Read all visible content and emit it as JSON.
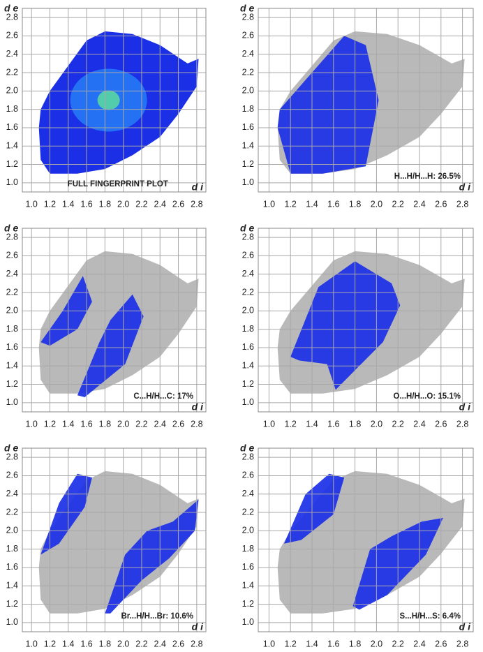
{
  "chart_data": [
    {
      "type": "fingerprint",
      "annotation": "FULL FINGERPRINT PLOT",
      "xlabel": "d i",
      "ylabel": "d e",
      "xlim": [
        0.9,
        2.9
      ],
      "ylim": [
        0.9,
        2.9
      ],
      "xticks": [
        {
          "value": 1,
          "label": "1.0"
        },
        1.2,
        1.4,
        1.6,
        1.8,
        {
          "value": 2,
          "label": "2.0"
        },
        2.2,
        2.4,
        2.6,
        2.8
      ],
      "yticks": [
        {
          "value": 1,
          "label": "1.0"
        },
        1.2,
        1.4,
        1.6,
        1.8,
        {
          "value": 2,
          "label": "2.0"
        },
        2.2,
        2.4,
        2.6,
        2.8
      ],
      "grid": true,
      "color": "#1a2fe6"
    },
    {
      "type": "fingerprint",
      "annotation": "H...H/H...H: 26.5%",
      "xlabel": "d i",
      "ylabel": "d e",
      "xlim": [
        0.9,
        2.9
      ],
      "ylim": [
        0.9,
        2.9
      ],
      "xticks": [
        {
          "value": 1,
          "label": "1.0"
        },
        1.2,
        1.4,
        1.6,
        1.8,
        {
          "value": 2,
          "label": "2.0"
        },
        2.2,
        2.4,
        2.6,
        2.8
      ],
      "yticks": [
        {
          "value": 1,
          "label": "1.0"
        },
        1.2,
        1.4,
        1.6,
        1.8,
        {
          "value": 2,
          "label": "2.0"
        },
        2.2,
        2.4,
        2.6,
        2.8
      ],
      "grid": true,
      "color": "#1a2fe6"
    },
    {
      "type": "fingerprint",
      "annotation": "C...H/H...C: 17%",
      "xlabel": "d i",
      "ylabel": "d e",
      "xlim": [
        0.9,
        2.9
      ],
      "ylim": [
        0.9,
        2.9
      ],
      "xticks": [
        {
          "value": 1,
          "label": "1.0"
        },
        1.2,
        1.4,
        1.6,
        1.8,
        {
          "value": 2,
          "label": "2.0"
        },
        2.2,
        2.4,
        2.6,
        2.8
      ],
      "yticks": [
        {
          "value": 1,
          "label": "1.0"
        },
        1.2,
        1.4,
        1.6,
        1.8,
        {
          "value": 2,
          "label": "2.0"
        },
        2.2,
        2.4,
        2.6,
        2.8
      ],
      "grid": true,
      "color": "#1a2fe6"
    },
    {
      "type": "fingerprint",
      "annotation": "O...H/H...O: 15.1%",
      "xlabel": "d i",
      "ylabel": "d e",
      "xlim": [
        0.9,
        2.9
      ],
      "ylim": [
        0.9,
        2.9
      ],
      "xticks": [
        {
          "value": 1,
          "label": "1.0"
        },
        1.2,
        1.4,
        1.6,
        1.8,
        {
          "value": 2,
          "label": "2.0"
        },
        2.2,
        2.4,
        2.6,
        2.8
      ],
      "yticks": [
        {
          "value": 1,
          "label": "1.0"
        },
        1.2,
        1.4,
        1.6,
        1.8,
        {
          "value": 2,
          "label": "2.0"
        },
        2.2,
        2.4,
        2.6,
        2.8
      ],
      "grid": true,
      "color": "#1a2fe6"
    },
    {
      "type": "fingerprint",
      "annotation": "Br...H/H...Br: 10.6%",
      "xlabel": "d i",
      "ylabel": "d e",
      "xlim": [
        0.9,
        2.9
      ],
      "ylim": [
        0.9,
        2.9
      ],
      "xticks": [
        {
          "value": 1,
          "label": "1.0"
        },
        1.2,
        1.4,
        1.6,
        1.8,
        {
          "value": 2,
          "label": "2.0"
        },
        2.2,
        2.4,
        2.6,
        2.8
      ],
      "yticks": [
        {
          "value": 1,
          "label": "1.0"
        },
        1.2,
        1.4,
        1.6,
        1.8,
        {
          "value": 2,
          "label": "2.0"
        },
        2.2,
        2.4,
        2.6,
        2.8
      ],
      "grid": true,
      "color": "#1a2fe6"
    },
    {
      "type": "fingerprint",
      "annotation": "S...H/H...S: 6.4%",
      "xlabel": "d i",
      "ylabel": "d e",
      "xlim": [
        0.9,
        2.9
      ],
      "ylim": [
        0.9,
        2.9
      ],
      "xticks": [
        {
          "value": 1,
          "label": "1.0"
        },
        1.2,
        1.4,
        1.6,
        1.8,
        {
          "value": 2,
          "label": "2.0"
        },
        2.2,
        2.4,
        2.6,
        2.8
      ],
      "yticks": [
        {
          "value": 1,
          "label": "1.0"
        },
        1.2,
        1.4,
        1.6,
        1.8,
        {
          "value": 2,
          "label": "2.0"
        },
        2.2,
        2.4,
        2.6,
        2.8
      ],
      "grid": true,
      "color": "#1a2fe6"
    }
  ]
}
